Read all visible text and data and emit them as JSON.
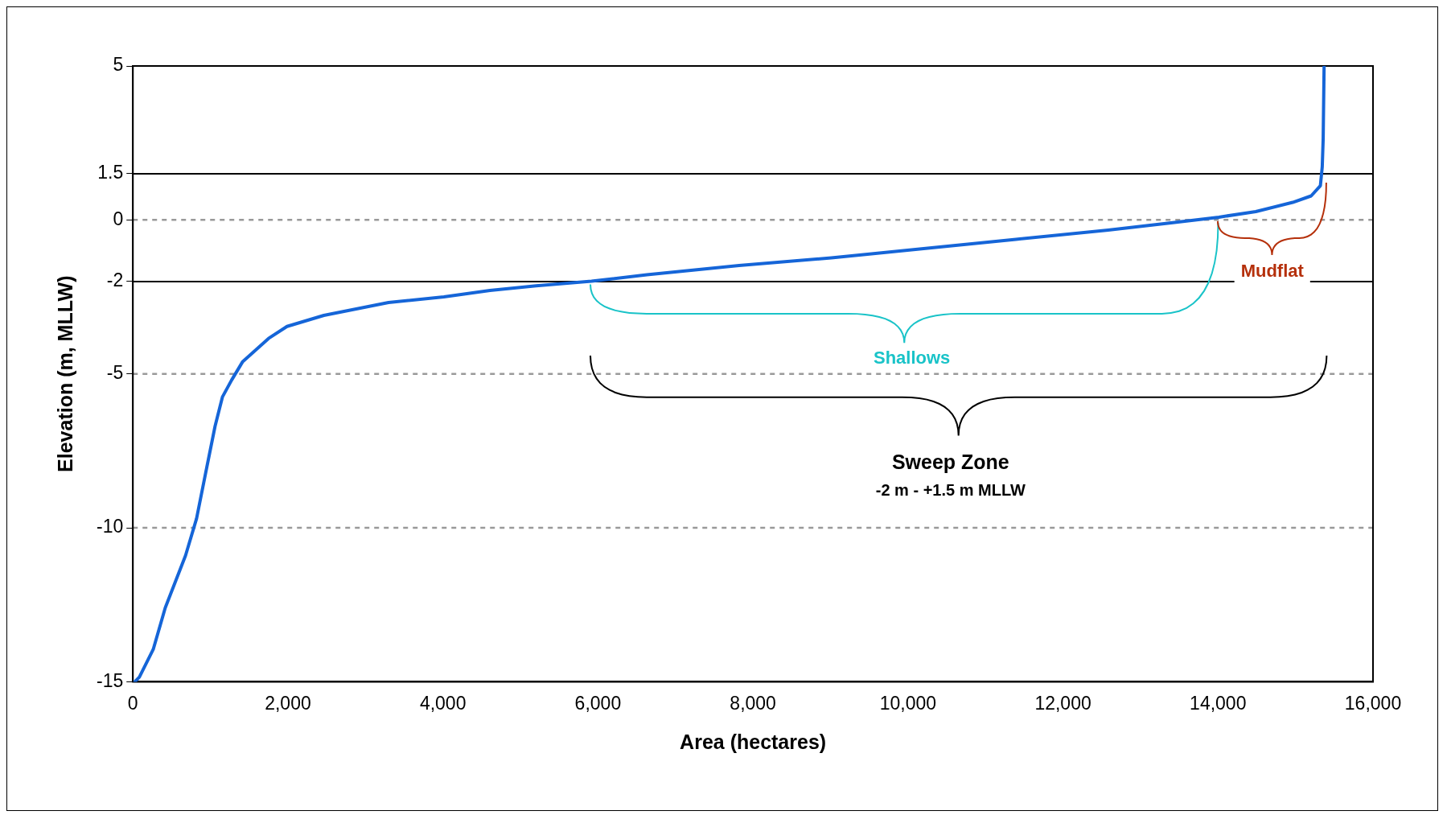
{
  "chart_data": {
    "type": "line",
    "xlabel": "Area (hectares)",
    "ylabel": "Elevation (m, MLLW)",
    "xlim": [
      0,
      16000
    ],
    "xticks": [
      {
        "value": 0,
        "label": "0"
      },
      {
        "value": 2000,
        "label": "2,000"
      },
      {
        "value": 4000,
        "label": "4,000"
      },
      {
        "value": 6000,
        "label": "6,000"
      },
      {
        "value": 8000,
        "label": "8,000"
      },
      {
        "value": 10000,
        "label": "10,000"
      },
      {
        "value": 12000,
        "label": "12,000"
      },
      {
        "value": 14000,
        "label": "14,000"
      },
      {
        "value": 16000,
        "label": "16,000"
      }
    ],
    "ylim": [
      -15,
      5
    ],
    "yticks": [
      -15,
      -10,
      -5,
      -2,
      0,
      1.5,
      5
    ],
    "grid": false,
    "legend": false,
    "marker": "none",
    "line_style": "solid",
    "series": [
      {
        "color": "#1565d8",
        "x": [
          24,
          83,
          262,
          417,
          679,
          821,
          940,
          1060,
          1155,
          1274,
          1417,
          1750,
          1988,
          2464,
          3298,
          4012,
          4607,
          5202,
          5917,
          6631,
          7821,
          9012,
          10202,
          11393,
          12583,
          13417,
          14012,
          14488,
          14964,
          15202,
          15321,
          15345,
          15357,
          15369
        ],
        "values": [
          -15,
          -14.85,
          -13.95,
          -12.6,
          -10.9,
          -9.7,
          -8.2,
          -6.7,
          -5.75,
          -5.2,
          -4.6,
          -3.85,
          -3.46,
          -3.1,
          -2.68,
          -2.5,
          -2.29,
          -2.14,
          -1.99,
          -1.78,
          -1.48,
          -1.23,
          -0.93,
          -0.63,
          -0.33,
          -0.09,
          0.09,
          0.27,
          0.57,
          0.78,
          1.11,
          1.72,
          2.62,
          5
        ]
      }
    ],
    "ref_lines": [
      {
        "axis": "y",
        "value": 1.5,
        "color": "#000000",
        "line_style": "solid"
      },
      {
        "axis": "y",
        "value": -2,
        "color": "#000000",
        "line_style": "solid"
      },
      {
        "axis": "y",
        "value": 0,
        "color": "#999999",
        "line_style": "dashed"
      },
      {
        "axis": "y",
        "value": -5,
        "color": "#999999",
        "line_style": "dashed"
      },
      {
        "axis": "y",
        "value": -10,
        "color": "#999999",
        "line_style": "dashed"
      }
    ],
    "annotations": [
      "Shallows",
      "Mudflat",
      "Sweep Zone",
      "-2 m - +1.5 m MLLW"
    ]
  }
}
